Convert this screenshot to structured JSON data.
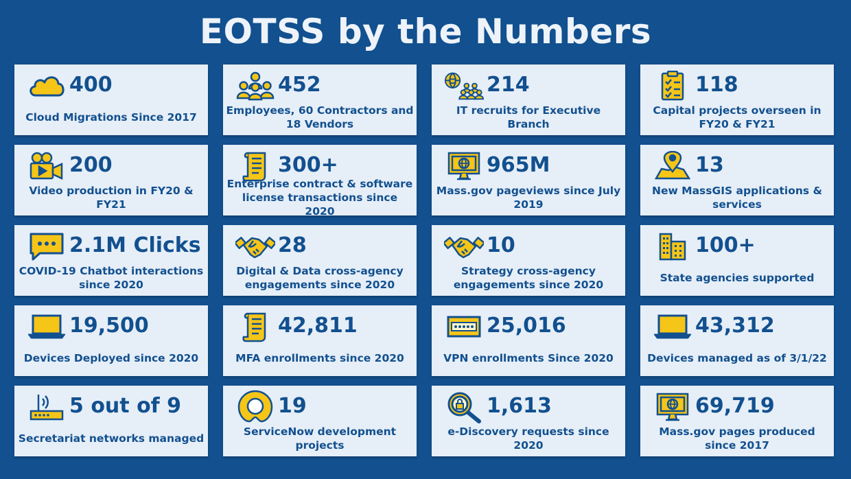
{
  "title": "EOTSS by the Numbers",
  "colors": {
    "background": "#12508f",
    "card": "#e6eef7",
    "text": "#12508f",
    "icon_fill": "#f5c518",
    "icon_stroke": "#12508f"
  },
  "cards": [
    {
      "icon": "cloud-icon",
      "number": "400",
      "label": "Cloud Migrations Since 2017"
    },
    {
      "icon": "people-group-icon",
      "number": "452",
      "label": "Employees, 60 Contractors and 18 Vendors"
    },
    {
      "icon": "globe-people-icon",
      "number": "214",
      "label": "IT recruits for Executive Branch"
    },
    {
      "icon": "clipboard-checklist-icon",
      "number": "118",
      "label": "Capital projects overseen in FY20 & FY21"
    },
    {
      "icon": "video-camera-icon",
      "number": "200",
      "label": "Video production in FY20 & FY21"
    },
    {
      "icon": "scroll-document-icon",
      "number": "300+",
      "label": "Enterprise contract & software license transactions since 2020"
    },
    {
      "icon": "monitor-globe-icon",
      "number": "965M",
      "label": "Mass.gov pageviews since July 2019"
    },
    {
      "icon": "map-pin-icon",
      "number": "13",
      "label": "New MassGIS applications & services"
    },
    {
      "icon": "chat-bubble-icon",
      "number": "2.1M Clicks",
      "label": "COVID-19 Chatbot interactions since 2020"
    },
    {
      "icon": "handshake-icon",
      "number": "28",
      "label": "Digital & Data cross-agency engagements since 2020"
    },
    {
      "icon": "handshake-icon",
      "number": "10",
      "label": "Strategy cross-agency engagements since 2020"
    },
    {
      "icon": "buildings-icon",
      "number": "100+",
      "label": "State agencies supported"
    },
    {
      "icon": "laptop-icon",
      "number": "19,500",
      "label": "Devices Deployed since 2020"
    },
    {
      "icon": "scroll-document-icon",
      "number": "42,811",
      "label": "MFA enrollments since 2020"
    },
    {
      "icon": "password-field-icon",
      "number": "25,016",
      "label": "VPN enrollments Since 2020"
    },
    {
      "icon": "laptop-icon",
      "number": "43,312",
      "label": "Devices managed as of 3/1/22"
    },
    {
      "icon": "router-icon",
      "number": "5 out of 9",
      "label": "Secretariat networks managed"
    },
    {
      "icon": "servicenow-logo-icon",
      "number": "19",
      "label": "ServiceNow development projects"
    },
    {
      "icon": "magnifier-lock-icon",
      "number": "1,613",
      "label": "e-Discovery requests since 2020"
    },
    {
      "icon": "monitor-globe-icon",
      "number": "69,719",
      "label": "Mass.gov pages produced since 2017"
    }
  ]
}
